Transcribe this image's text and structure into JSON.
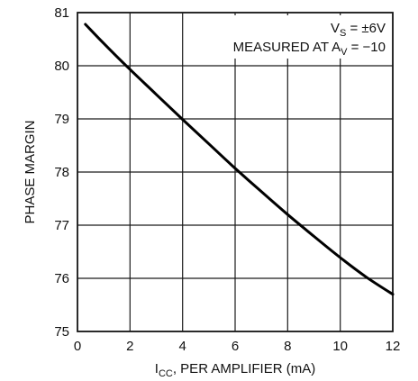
{
  "chart_data": {
    "type": "line",
    "xlabel": {
      "main": "I",
      "sub": "CC",
      "rest": ", PER AMPLIFIER (mA)"
    },
    "ylabel": "PHASE MARGIN",
    "xlim": [
      0,
      12
    ],
    "ylim": [
      75,
      81
    ],
    "xticks": [
      0,
      2,
      4,
      6,
      8,
      10,
      12
    ],
    "yticks": [
      75,
      76,
      77,
      78,
      79,
      80,
      81
    ],
    "grid": true,
    "annotations": {
      "line1": {
        "main": "V",
        "sub": "S",
        "rest": " = ±6V"
      },
      "line2": {
        "main": "MEASURED AT A",
        "sub": "V",
        "rest": " = −10"
      }
    },
    "series": [
      {
        "x": [
          0.3,
          1,
          2,
          3,
          4,
          5,
          6,
          7,
          8,
          9,
          10,
          11,
          12
        ],
        "y": [
          80.78,
          80.42,
          79.93,
          79.46,
          78.99,
          78.53,
          78.07,
          77.63,
          77.2,
          76.79,
          76.39,
          76.02,
          75.7
        ]
      }
    ]
  }
}
